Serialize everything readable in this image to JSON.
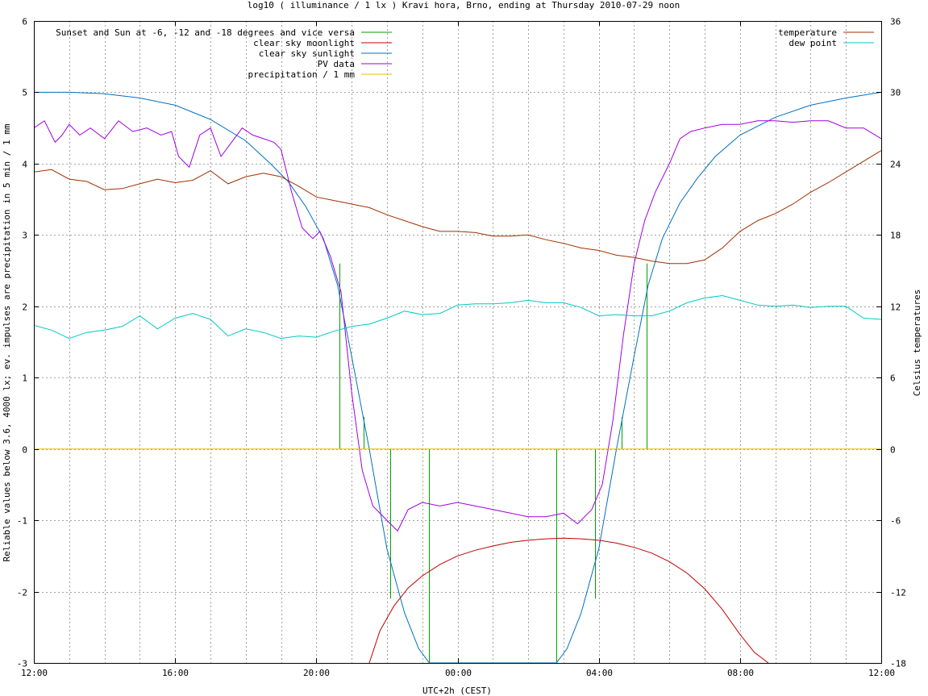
{
  "chart_data": {
    "type": "line",
    "title": "log10 ( illuminance / 1 lx ) Kravi hora, Brno, ending at Thursday 2010-07-29 noon",
    "xlabel": "UTC+2h (CEST)",
    "ylabel": "Reliable values below 3.6, 4000 lx; ev. impulses are precipitation in 5 min / 1 mm",
    "y2label": "Celsius temperatures",
    "xlim": [
      12,
      36
    ],
    "ylim": [
      -3,
      6
    ],
    "y2lim": [
      -18,
      36
    ],
    "x_ticks": [
      {
        "x": 12,
        "label": "12:00"
      },
      {
        "x": 16,
        "label": "16:00"
      },
      {
        "x": 20,
        "label": "20:00"
      },
      {
        "x": 24,
        "label": "00:00"
      },
      {
        "x": 28,
        "label": "04:00"
      },
      {
        "x": 32,
        "label": "08:00"
      },
      {
        "x": 36,
        "label": "12:00"
      }
    ],
    "y_ticks": [
      -3,
      -2,
      -1,
      0,
      1,
      2,
      3,
      4,
      5,
      6
    ],
    "y2_ticks": [
      -18,
      -12,
      -6,
      0,
      6,
      12,
      18,
      24,
      30,
      36
    ],
    "grid": true,
    "legend_left": [
      {
        "name": "Sunset and Sun at -6, -12 and -18 degrees and vice versa",
        "color": "#00a000"
      },
      {
        "name": "clear sky moonlight",
        "color": "#c00000"
      },
      {
        "name": "clear sky sunlight",
        "color": "#0070c0"
      },
      {
        "name": "PV data",
        "color": "#a000e0"
      },
      {
        "name": "precipitation / 1 mm",
        "color": "#e0c000"
      }
    ],
    "legend_right": [
      {
        "name": "temperature",
        "color": "#a03000"
      },
      {
        "name": "dew point",
        "color": "#00c8c8"
      }
    ],
    "sun_impulses": [
      {
        "x": 20.65,
        "y": 2.6
      },
      {
        "x": 21.35,
        "y": 0.45
      },
      {
        "x": 22.1,
        "y": -2.1
      },
      {
        "x": 23.2,
        "y": -3.0
      },
      {
        "x": 26.8,
        "y": -3.0
      },
      {
        "x": 27.9,
        "y": -2.1
      },
      {
        "x": 28.65,
        "y": 0.45
      },
      {
        "x": 29.35,
        "y": 2.6
      }
    ],
    "series": [
      {
        "name": "clear sky sunlight",
        "axis": "y",
        "x": [
          12.0,
          13.0,
          14.0,
          15.0,
          16.0,
          17.0,
          18.0,
          18.7,
          19.2,
          19.7,
          20.2,
          20.6,
          21.0,
          21.5,
          22.0,
          22.5,
          22.9,
          23.2,
          26.8,
          27.1,
          27.5,
          28.0,
          28.5,
          29.0,
          29.4,
          29.8,
          30.3,
          30.8,
          31.3,
          32.0,
          33.0,
          34.0,
          35.0,
          36.0
        ],
        "y": [
          5.0,
          5.0,
          4.98,
          4.92,
          4.82,
          4.62,
          4.32,
          4.0,
          3.75,
          3.4,
          2.95,
          2.3,
          1.3,
          0.0,
          -1.4,
          -2.3,
          -2.8,
          -3.0,
          -3.0,
          -2.8,
          -2.3,
          -1.4,
          0.0,
          1.3,
          2.3,
          2.95,
          3.45,
          3.8,
          4.1,
          4.4,
          4.65,
          4.82,
          4.92,
          5.0
        ]
      },
      {
        "name": "clear sky moonlight",
        "axis": "y",
        "x": [
          21.5,
          21.8,
          22.2,
          22.6,
          23.0,
          23.5,
          24.0,
          24.5,
          25.0,
          25.5,
          26.0,
          26.5,
          27.0,
          27.5,
          28.0,
          28.5,
          29.0,
          29.5,
          30.0,
          30.5,
          31.0,
          31.5,
          32.0,
          32.4,
          32.8
        ],
        "y": [
          -3.0,
          -2.55,
          -2.2,
          -1.95,
          -1.78,
          -1.62,
          -1.5,
          -1.42,
          -1.36,
          -1.31,
          -1.28,
          -1.26,
          -1.25,
          -1.26,
          -1.28,
          -1.32,
          -1.38,
          -1.46,
          -1.58,
          -1.74,
          -1.96,
          -2.25,
          -2.6,
          -2.85,
          -3.0
        ]
      },
      {
        "name": "PV data",
        "axis": "y",
        "x": [
          12.0,
          12.3,
          12.6,
          12.8,
          13.0,
          13.3,
          13.6,
          14.0,
          14.4,
          14.8,
          15.2,
          15.6,
          15.9,
          16.1,
          16.4,
          16.7,
          17.0,
          17.3,
          17.6,
          17.9,
          18.2,
          18.5,
          18.8,
          19.0,
          19.3,
          19.6,
          19.9,
          20.1,
          20.4,
          20.7,
          21.0,
          21.3,
          21.6,
          22.0,
          22.3,
          22.6,
          23.0,
          23.5,
          24.0,
          24.5,
          25.0,
          25.5,
          26.0,
          26.5,
          27.0,
          27.4,
          27.8,
          28.1,
          28.4,
          28.7,
          29.0,
          29.3,
          29.6,
          30.0,
          30.3,
          30.6,
          31.0,
          31.5,
          32.0,
          32.5,
          33.0,
          33.5,
          34.0,
          34.5,
          35.0,
          35.5,
          36.0
        ],
        "y": [
          4.5,
          4.6,
          4.3,
          4.4,
          4.55,
          4.4,
          4.5,
          4.35,
          4.6,
          4.45,
          4.5,
          4.4,
          4.45,
          4.1,
          3.95,
          4.4,
          4.5,
          4.1,
          4.3,
          4.5,
          4.4,
          4.35,
          4.3,
          4.2,
          3.6,
          3.1,
          2.95,
          3.05,
          2.7,
          2.2,
          0.8,
          -0.3,
          -0.8,
          -1.0,
          -1.15,
          -0.85,
          -0.75,
          -0.8,
          -0.75,
          -0.8,
          -0.85,
          -0.9,
          -0.95,
          -0.95,
          -0.9,
          -1.05,
          -0.85,
          -0.5,
          0.4,
          1.6,
          2.6,
          3.2,
          3.6,
          4.0,
          4.35,
          4.45,
          4.5,
          4.55,
          4.55,
          4.6,
          4.6,
          4.58,
          4.6,
          4.6,
          4.5,
          4.5,
          4.35
        ]
      },
      {
        "name": "precipitation / 1 mm",
        "axis": "y",
        "x": [
          12.0,
          36.0
        ],
        "y": [
          0.0,
          0.0
        ]
      },
      {
        "name": "temperature",
        "axis": "y2",
        "x": [
          12.0,
          12.5,
          13.0,
          13.5,
          14.0,
          14.5,
          15.0,
          15.5,
          16.0,
          16.5,
          17.0,
          17.5,
          18.0,
          18.5,
          19.0,
          19.5,
          20.0,
          20.5,
          21.0,
          21.5,
          22.0,
          22.5,
          23.0,
          23.5,
          24.0,
          24.5,
          25.0,
          25.5,
          26.0,
          26.5,
          27.0,
          27.5,
          28.0,
          28.5,
          29.0,
          29.5,
          30.0,
          30.5,
          31.0,
          31.5,
          32.0,
          32.5,
          33.0,
          33.5,
          34.0,
          34.5,
          35.0,
          35.5,
          36.0
        ],
        "y": [
          23.3,
          23.5,
          22.7,
          22.5,
          21.8,
          21.9,
          22.3,
          22.7,
          22.4,
          22.6,
          23.4,
          22.3,
          22.9,
          23.2,
          22.9,
          22.1,
          21.2,
          20.9,
          20.6,
          20.3,
          19.7,
          19.2,
          18.7,
          18.3,
          18.3,
          18.2,
          17.9,
          17.9,
          18.0,
          17.6,
          17.3,
          16.9,
          16.7,
          16.3,
          16.1,
          15.8,
          15.6,
          15.6,
          15.9,
          16.9,
          18.3,
          19.2,
          19.8,
          20.6,
          21.6,
          22.4,
          23.3,
          24.2,
          25.1
        ]
      },
      {
        "name": "dew point",
        "axis": "y2",
        "x": [
          12.0,
          12.5,
          13.0,
          13.5,
          14.0,
          14.5,
          15.0,
          15.5,
          16.0,
          16.5,
          17.0,
          17.5,
          18.0,
          18.5,
          19.0,
          19.5,
          20.0,
          20.5,
          21.0,
          21.5,
          22.0,
          22.5,
          23.0,
          23.5,
          24.0,
          24.5,
          25.0,
          25.5,
          26.0,
          26.5,
          27.0,
          27.5,
          28.0,
          28.5,
          29.0,
          29.5,
          30.0,
          30.5,
          31.0,
          31.5,
          32.0,
          32.5,
          33.0,
          33.5,
          34.0,
          34.5,
          35.0,
          35.5,
          36.0
        ],
        "y": [
          10.4,
          10.0,
          9.3,
          9.8,
          10.0,
          10.3,
          11.2,
          10.1,
          11.0,
          11.4,
          10.9,
          9.5,
          10.1,
          9.8,
          9.3,
          9.5,
          9.4,
          9.9,
          10.3,
          10.5,
          11.0,
          11.6,
          11.3,
          11.4,
          12.1,
          12.2,
          12.2,
          12.3,
          12.5,
          12.3,
          12.3,
          11.9,
          11.2,
          11.3,
          11.2,
          11.2,
          11.6,
          12.3,
          12.7,
          12.9,
          12.5,
          12.1,
          12.0,
          12.1,
          11.9,
          12.0,
          12.0,
          11.0,
          10.9
        ]
      }
    ]
  }
}
